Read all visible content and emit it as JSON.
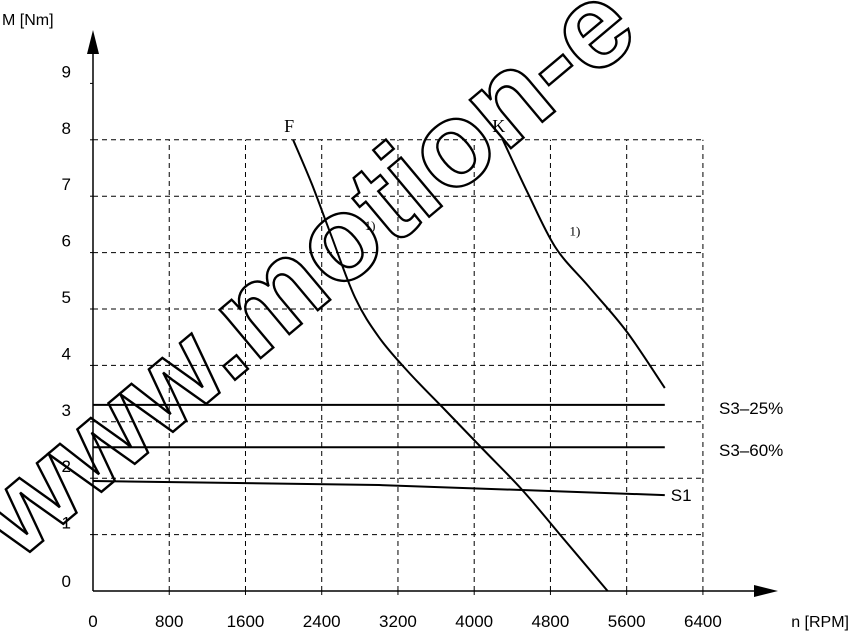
{
  "chart_data": {
    "type": "line",
    "xlabel": "n [RPM]",
    "ylabel": "M [Nm]",
    "xlim": [
      0,
      7000
    ],
    "ylim": [
      0,
      10
    ],
    "x_ticks": [
      0,
      800,
      1600,
      2400,
      3200,
      4000,
      4800,
      5600,
      6400
    ],
    "y_ticks": [
      0,
      1,
      2,
      3,
      4,
      5,
      6,
      7,
      8,
      9
    ],
    "grid": true,
    "grid_style": "dashed",
    "series": [
      {
        "name": "F",
        "label_pos": "top",
        "x": [
          2100,
          2300,
          2500,
          2750,
          3000,
          3300,
          3700,
          4100,
          4500,
          4900,
          5400
        ],
        "y": [
          8.0,
          7.2,
          6.3,
          5.2,
          4.5,
          3.9,
          3.2,
          2.5,
          1.8,
          1.0,
          0.0
        ]
      },
      {
        "name": "K",
        "label_pos": "top",
        "x": [
          4300,
          4550,
          4850,
          5200,
          5600,
          6000
        ],
        "y": [
          8.0,
          7.1,
          6.1,
          5.4,
          4.6,
          3.6
        ]
      },
      {
        "name": "S3–25%",
        "label_pos": "right",
        "x": [
          0,
          6000
        ],
        "y": [
          3.3,
          3.3
        ]
      },
      {
        "name": "S3–60%",
        "label_pos": "right",
        "x": [
          0,
          6000
        ],
        "y": [
          2.55,
          2.55
        ]
      },
      {
        "name": "S1",
        "label_pos": "right",
        "x": [
          0,
          3000,
          6000
        ],
        "y": [
          1.95,
          1.88,
          1.7
        ]
      }
    ],
    "annotations": [
      {
        "text": "1)",
        "x": 2850,
        "y": 6.4
      },
      {
        "text": "1)",
        "x": 5000,
        "y": 6.3
      }
    ]
  },
  "watermark": {
    "text": "www.motion-e"
  }
}
